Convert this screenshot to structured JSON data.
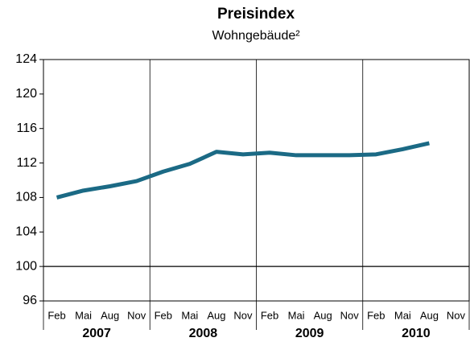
{
  "chart_data": {
    "type": "line",
    "title": "Preisindex",
    "subtitle": "Wohngebäude²",
    "categories": [
      "Feb",
      "Mai",
      "Aug",
      "Nov",
      "Feb",
      "Mai",
      "Aug",
      "Nov",
      "Feb",
      "Mai",
      "Aug",
      "Nov",
      "Feb",
      "Mai",
      "Aug",
      "Nov"
    ],
    "groups": [
      "2007",
      "2008",
      "2009",
      "2010"
    ],
    "series": [
      {
        "name": "Preisindex",
        "color": "#1b6a85",
        "values": [
          108.0,
          108.8,
          109.3,
          109.9,
          111.0,
          111.9,
          113.3,
          113.0,
          113.2,
          112.9,
          112.9,
          112.9,
          113.0,
          113.6,
          114.3,
          null
        ]
      }
    ],
    "ylim": [
      96,
      124
    ],
    "yticks": [
      96,
      100,
      104,
      108,
      112,
      116,
      120,
      124
    ],
    "reference_line": 100
  }
}
